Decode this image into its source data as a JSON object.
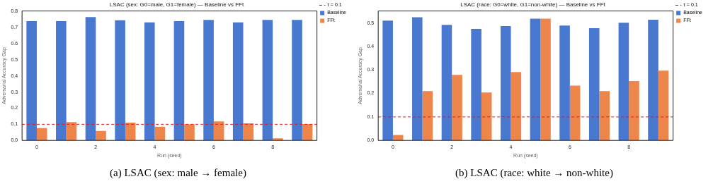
{
  "chart_data": [
    {
      "type": "bar",
      "title": "LSAC (sex: G0=male, G1=female) — Baseline vs FFt",
      "xlabel": "Run (seed)",
      "ylabel": "Adversarial Accuracy Gap",
      "categories": [
        "0",
        null,
        "2",
        null,
        "4",
        null,
        "6",
        null,
        "8",
        null
      ],
      "ylim": [
        0,
        0.803
      ],
      "yticks": [
        {
          "value": 0,
          "label": "0.0"
        },
        0.1,
        0.2,
        0.3,
        0.4,
        0.5,
        0.6,
        0.7,
        0.8
      ],
      "legend": "top right",
      "grid": false,
      "series": [
        {
          "name": "Baseline",
          "color": "#4878cf",
          "values": [
            0.74,
            0.74,
            0.765,
            0.745,
            0.732,
            0.74,
            0.748,
            0.732,
            0.748,
            0.748
          ]
        },
        {
          "name": "FFt",
          "color": "#ee854a",
          "values": [
            0.076,
            0.114,
            0.059,
            0.11,
            0.085,
            0.1,
            0.118,
            0.106,
            0.013,
            0.101
          ]
        }
      ],
      "ref_lines": [
        {
          "axis": "y",
          "value": 0.1,
          "label": "τ = 0.1",
          "color": "#e41a1c",
          "line_style": "dashed"
        }
      ],
      "annotations": [
        "(a) LSAC (sex: male → female)"
      ]
    },
    {
      "type": "bar",
      "title": "LSAC (race: G0=white, G1=non-white) — Baseline vs FFt",
      "xlabel": "Run (seed)",
      "ylabel": "Adversarial Accuracy Gap",
      "categories": [
        "0",
        null,
        "2",
        null,
        "4",
        null,
        "6",
        null,
        "8",
        null
      ],
      "ylim": [
        0,
        0.551
      ],
      "yticks": [
        {
          "value": 0,
          "label": "0.0"
        },
        0.1,
        0.2,
        0.3,
        0.4,
        0.5
      ],
      "legend": "top right",
      "grid": false,
      "series": [
        {
          "name": "Baseline",
          "color": "#4878cf",
          "values": [
            0.51,
            0.524,
            0.492,
            0.475,
            0.487,
            0.518,
            0.489,
            0.478,
            0.501,
            0.514
          ]
        },
        {
          "name": "FFt",
          "color": "#ee854a",
          "values": [
            0.023,
            0.21,
            0.279,
            0.204,
            0.291,
            0.518,
            0.233,
            0.21,
            0.253,
            0.297
          ]
        }
      ],
      "ref_lines": [
        {
          "axis": "y",
          "value": 0.1,
          "label": "τ = 0.1",
          "color": "#e41a1c",
          "line_style": "dashed"
        }
      ],
      "annotations": [
        "(b) LSAC (race: white → non-white)"
      ]
    }
  ]
}
